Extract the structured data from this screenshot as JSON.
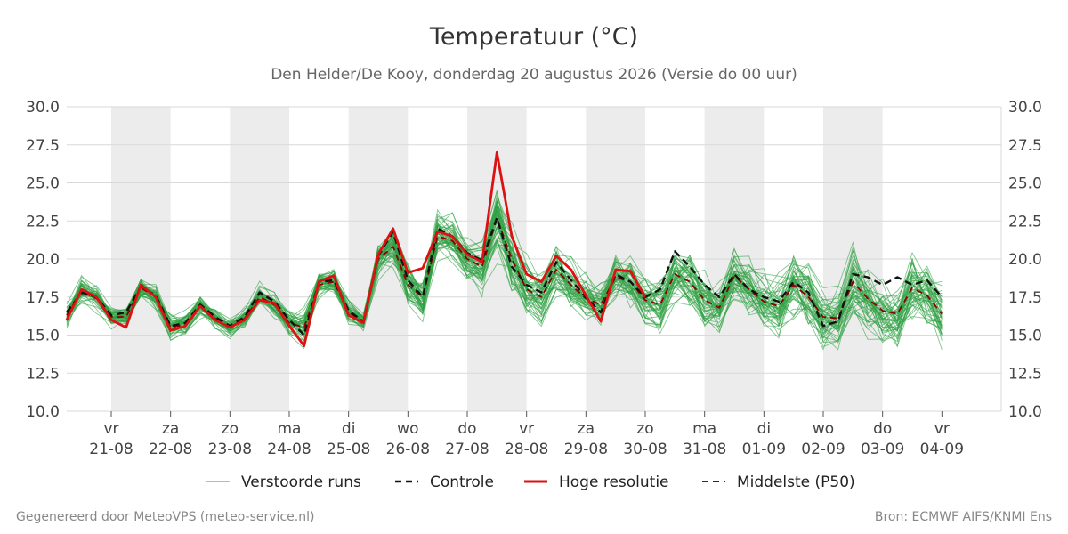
{
  "chart_data": {
    "type": "line",
    "title": "Temperatuur (°C)",
    "subtitle": "Den Helder/De Kooy, donderdag 20 augustus 2026 (Versie do 00 uur)",
    "ylim": [
      10.0,
      30.0
    ],
    "yticks": [
      "10.0",
      "12.5",
      "15.0",
      "17.5",
      "20.0",
      "22.5",
      "25.0",
      "27.5",
      "30.0"
    ],
    "xlim": [
      -0.75,
      15.0
    ],
    "x_ticks": [
      {
        "x": 0,
        "day": "vr",
        "date": "21-08"
      },
      {
        "x": 1,
        "day": "za",
        "date": "22-08"
      },
      {
        "x": 2,
        "day": "zo",
        "date": "23-08"
      },
      {
        "x": 3,
        "day": "ma",
        "date": "24-08"
      },
      {
        "x": 4,
        "day": "di",
        "date": "25-08"
      },
      {
        "x": 5,
        "day": "wo",
        "date": "26-08"
      },
      {
        "x": 6,
        "day": "do",
        "date": "27-08"
      },
      {
        "x": 7,
        "day": "vr",
        "date": "28-08"
      },
      {
        "x": 8,
        "day": "za",
        "date": "29-08"
      },
      {
        "x": 9,
        "day": "zo",
        "date": "30-08"
      },
      {
        "x": 10,
        "day": "ma",
        "date": "31-08"
      },
      {
        "x": 11,
        "day": "di",
        "date": "01-09"
      },
      {
        "x": 12,
        "day": "wo",
        "date": "02-09"
      },
      {
        "x": 13,
        "day": "do",
        "date": "03-09"
      },
      {
        "x": 14,
        "day": "vr",
        "date": "04-09"
      }
    ],
    "shaded_days": [
      [
        0,
        1
      ],
      [
        2,
        3
      ],
      [
        4,
        5
      ],
      [
        6,
        7
      ],
      [
        8,
        9
      ],
      [
        10,
        11
      ],
      [
        12,
        13
      ]
    ],
    "grid": true,
    "legend_position": "bottom",
    "series": [
      {
        "name": "Hoge resolutie",
        "color": "#dd1111",
        "x": [
          -0.75,
          -0.5,
          -0.25,
          0,
          0.25,
          0.5,
          0.75,
          1,
          1.25,
          1.5,
          1.75,
          2,
          2.25,
          2.5,
          2.75,
          3,
          3.25,
          3.5,
          3.75,
          4,
          4.25,
          4.5,
          4.75,
          5,
          5.25,
          5.5,
          5.75,
          6,
          6.25,
          6.5,
          6.75,
          7,
          7.25,
          7.5,
          7.75,
          8,
          8.25,
          8.5,
          8.75,
          9
        ],
        "values": [
          16.0,
          18.0,
          17.5,
          16.0,
          15.5,
          18.3,
          17.5,
          15.3,
          15.6,
          16.9,
          16.0,
          15.5,
          16.0,
          17.3,
          17.1,
          15.6,
          14.3,
          18.5,
          18.9,
          16.3,
          15.8,
          20.3,
          22.0,
          19.1,
          19.4,
          21.8,
          21.5,
          20.3,
          19.8,
          27.0,
          21.5,
          19.0,
          18.5,
          20.2,
          19.3,
          17.6,
          15.9,
          19.3,
          19.2,
          17.5
        ]
      },
      {
        "name": "Controle",
        "color": "#111111",
        "dashed": true,
        "x": [
          -0.75,
          -0.5,
          -0.25,
          0,
          0.25,
          0.5,
          0.75,
          1,
          1.25,
          1.5,
          1.75,
          2,
          2.25,
          2.5,
          2.75,
          3,
          3.25,
          3.5,
          3.75,
          4,
          4.25,
          4.5,
          4.75,
          5,
          5.25,
          5.5,
          5.75,
          6,
          6.25,
          6.5,
          6.75,
          7,
          7.25,
          7.5,
          7.75,
          8,
          8.25,
          8.5,
          8.75,
          9,
          9.25,
          9.5,
          9.75,
          10,
          10.25,
          10.5,
          10.75,
          11,
          11.25,
          11.5,
          11.75,
          12,
          12.25,
          12.5,
          12.75,
          13,
          13.25,
          13.5,
          13.75,
          14
        ],
        "values": [
          16.5,
          17.8,
          17.5,
          16.3,
          16.5,
          18.2,
          17.6,
          15.6,
          15.8,
          17.0,
          16.2,
          15.6,
          16.2,
          17.8,
          17.2,
          16.0,
          15.0,
          18.5,
          18.6,
          16.6,
          15.9,
          20.2,
          21.8,
          18.6,
          17.5,
          22.0,
          21.5,
          20.4,
          19.9,
          22.7,
          19.5,
          18.3,
          17.8,
          19.8,
          18.6,
          17.5,
          16.5,
          19.0,
          18.5,
          17.5,
          18.0,
          20.5,
          19.5,
          18.3,
          17.5,
          19.0,
          18.0,
          17.5,
          17.2,
          18.5,
          17.8,
          15.6,
          15.9,
          19.0,
          18.8,
          18.3,
          18.8,
          18.3,
          18.6,
          17.5
        ]
      },
      {
        "name": "Middelste (P50)",
        "color": "#8b0000",
        "dashed": true,
        "x": [
          -0.75,
          -0.5,
          -0.25,
          0,
          0.25,
          0.5,
          0.75,
          1,
          1.25,
          1.5,
          1.75,
          2,
          2.25,
          2.5,
          2.75,
          3,
          3.25,
          3.5,
          3.75,
          4,
          4.25,
          4.5,
          4.75,
          5,
          5.25,
          5.5,
          5.75,
          6,
          6.25,
          6.5,
          6.75,
          7,
          7.25,
          7.5,
          7.75,
          8,
          8.25,
          8.5,
          8.75,
          9,
          9.25,
          9.5,
          9.75,
          10,
          10.25,
          10.5,
          10.75,
          11,
          11.25,
          11.5,
          11.75,
          12,
          12.25,
          12.5,
          12.75,
          13,
          13.25,
          13.5,
          13.75,
          14
        ],
        "values": [
          16.3,
          17.9,
          17.4,
          16.2,
          16.2,
          18.1,
          17.5,
          15.5,
          15.7,
          16.9,
          16.1,
          15.5,
          16.1,
          17.5,
          17.0,
          15.8,
          15.5,
          18.3,
          18.5,
          16.5,
          15.9,
          20.0,
          20.8,
          18.3,
          17.5,
          21.5,
          21.2,
          20.0,
          19.5,
          22.7,
          20.0,
          18.0,
          17.5,
          19.3,
          18.3,
          17.4,
          17.0,
          18.8,
          18.5,
          17.3,
          17.0,
          19.0,
          18.5,
          17.3,
          16.8,
          18.9,
          18.0,
          17.2,
          16.9,
          18.3,
          17.5,
          16.2,
          16.1,
          18.5,
          17.4,
          16.6,
          16.4,
          18.1,
          17.6,
          16.4
        ]
      }
    ],
    "ensemble": {
      "name": "Verstoorde runs",
      "color": "#2ea043",
      "members": 50,
      "x_start": -0.75,
      "x_step": 0.25,
      "median": [
        16.3,
        17.9,
        17.4,
        16.2,
        16.2,
        18.1,
        17.5,
        15.5,
        15.7,
        16.9,
        16.1,
        15.5,
        16.1,
        17.5,
        17.0,
        15.8,
        15.5,
        18.3,
        18.5,
        16.5,
        15.9,
        20.0,
        20.8,
        18.3,
        17.5,
        21.5,
        21.2,
        20.0,
        19.5,
        22.7,
        20.0,
        18.0,
        17.5,
        19.3,
        18.3,
        17.4,
        17.0,
        18.8,
        18.5,
        17.3,
        17.0,
        19.0,
        18.5,
        17.3,
        16.8,
        18.9,
        18.0,
        17.2,
        16.9,
        18.3,
        17.5,
        16.2,
        16.1,
        18.5,
        17.4,
        16.6,
        16.4,
        18.1,
        17.6,
        16.4
      ],
      "spread": [
        0.8,
        0.9,
        0.8,
        0.6,
        0.6,
        0.8,
        0.8,
        0.9,
        0.8,
        0.7,
        0.7,
        0.6,
        0.6,
        0.8,
        0.8,
        0.9,
        1.2,
        0.8,
        0.8,
        0.7,
        0.6,
        1.0,
        1.3,
        1.4,
        1.5,
        1.5,
        1.4,
        1.3,
        1.6,
        2.2,
        2.0,
        1.8,
        1.8,
        1.8,
        1.7,
        1.6,
        1.6,
        1.7,
        1.7,
        1.7,
        1.8,
        1.8,
        1.8,
        1.8,
        1.8,
        1.9,
        1.9,
        1.9,
        1.9,
        2.0,
        2.0,
        2.0,
        2.0,
        2.1,
        2.1,
        2.1,
        2.1,
        2.2,
        2.2,
        2.2
      ]
    }
  },
  "legend": {
    "ensemble": "Verstoorde runs",
    "control": "Controle",
    "hires": "Hoge resolutie",
    "p50": "Middelste (P50)"
  },
  "footer": {
    "left": "Gegenereerd door MeteoVPS (meteo-service.nl)",
    "right": "Bron: ECMWF AIFS/KNMI Ens"
  }
}
